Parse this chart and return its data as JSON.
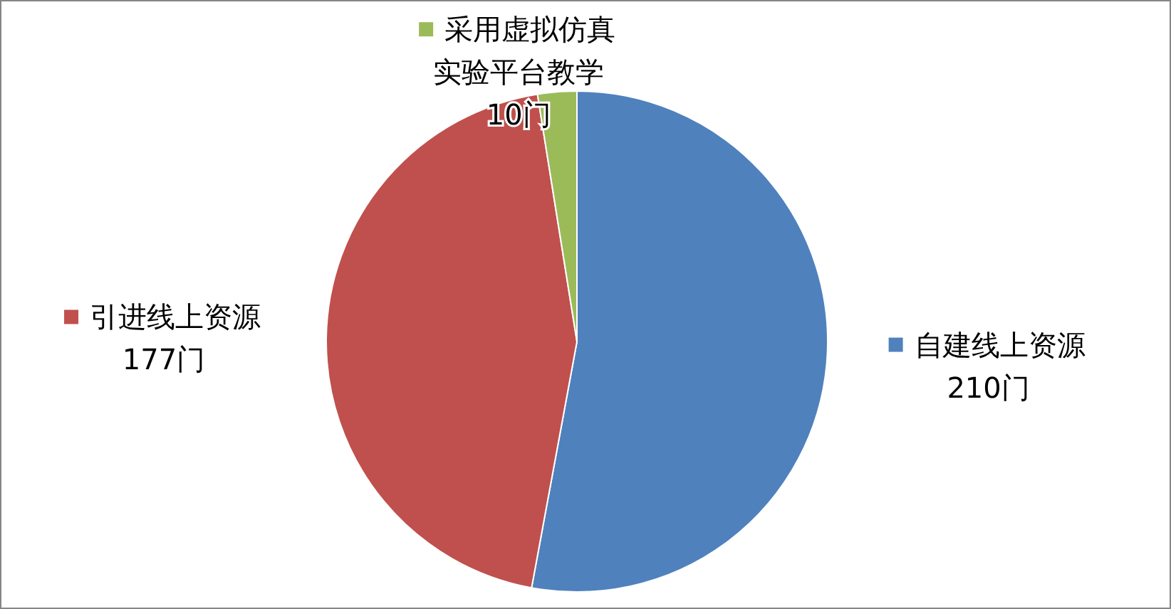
{
  "chart_data": {
    "type": "pie",
    "categories": [
      "自建线上资源",
      "引进线上资源",
      "采用虚拟仿真实验平台教学"
    ],
    "values": [
      210,
      177,
      10
    ],
    "value_labels": [
      "210门",
      "177门",
      "10门"
    ],
    "colors": [
      "#4f81bd",
      "#c0504d",
      "#9bbb59"
    ],
    "legend": "top"
  }
}
